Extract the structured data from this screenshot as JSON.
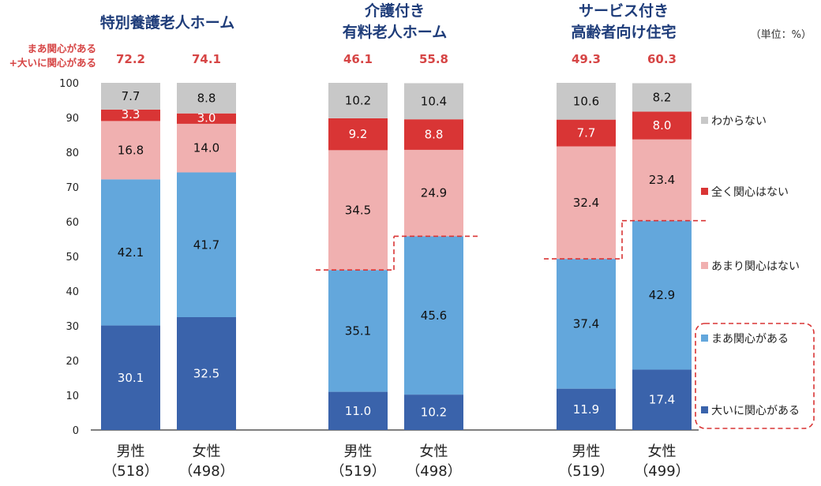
{
  "unit_label": "（単位：%）",
  "sum_label": [
    "まあ関心がある",
    "+大いに関心がある"
  ],
  "chart_data": {
    "type": "bar",
    "stacked": true,
    "ylim": [
      0,
      100
    ],
    "yticks": [
      0,
      10,
      20,
      30,
      40,
      50,
      60,
      70,
      80,
      90,
      100
    ],
    "groups": [
      {
        "title": [
          "特別養護老人ホーム"
        ],
        "categories": [
          "男性",
          "女性"
        ],
        "counts": [
          "（518）",
          "（498）"
        ],
        "sums": [
          "72.2",
          "74.1"
        ]
      },
      {
        "title": [
          "介護付き",
          "有料老人ホーム"
        ],
        "categories": [
          "男性",
          "女性"
        ],
        "counts": [
          "（519）",
          "（498）"
        ],
        "sums": [
          "46.1",
          "55.8"
        ]
      },
      {
        "title": [
          "サービス付き",
          "高齢者向け住宅"
        ],
        "categories": [
          "男性",
          "女性"
        ],
        "counts": [
          "（519）",
          "（499）"
        ],
        "sums": [
          "49.3",
          "60.3"
        ]
      }
    ],
    "series": [
      {
        "name": "大いに関心がある",
        "color": "#3a63ab",
        "text_color": "#ffffff",
        "values": [
          30.1,
          32.5,
          11.0,
          10.2,
          11.9,
          17.4
        ]
      },
      {
        "name": "まあ関心がある",
        "color": "#63a7dc",
        "text_color": "#111111",
        "values": [
          42.1,
          41.7,
          35.1,
          45.6,
          37.4,
          42.9
        ]
      },
      {
        "name": "あまり関心はない",
        "color": "#f0b0b0",
        "text_color": "#111111",
        "values": [
          16.8,
          14.0,
          34.5,
          24.9,
          32.4,
          23.4
        ]
      },
      {
        "name": "全く関心はない",
        "color": "#d93535",
        "text_color": "#ffffff",
        "values": [
          3.3,
          3.0,
          9.2,
          8.8,
          7.7,
          8.0
        ]
      },
      {
        "name": "わからない",
        "color": "#c8c8c8",
        "text_color": "#111111",
        "values": [
          7.7,
          8.8,
          10.2,
          10.4,
          10.6,
          8.2
        ]
      }
    ]
  }
}
